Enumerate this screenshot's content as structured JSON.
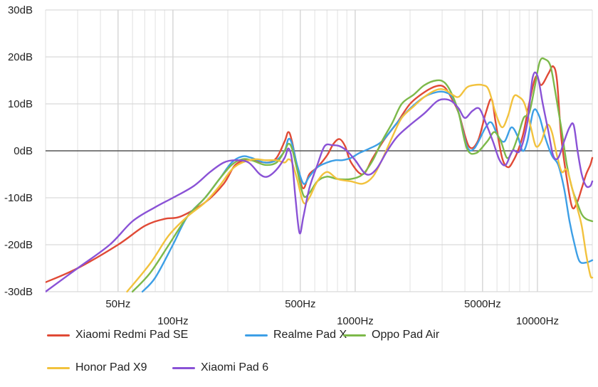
{
  "chart_data": {
    "type": "line",
    "title": "",
    "xlabel": "",
    "ylabel": "",
    "x_scale": "log",
    "xlim": [
      20,
      20000
    ],
    "ylim": [
      -30,
      30
    ],
    "grid": true,
    "legend_position": "bottom",
    "yticks": [
      {
        "value": 30,
        "label": "30dB"
      },
      {
        "value": 20,
        "label": "20dB"
      },
      {
        "value": 10,
        "label": "10dB"
      },
      {
        "value": 0,
        "label": "0dB"
      },
      {
        "value": -10,
        "label": "-10dB"
      },
      {
        "value": -20,
        "label": "-20dB"
      },
      {
        "value": -30,
        "label": "-30dB"
      }
    ],
    "xticks": [
      {
        "value": 50,
        "label": "50Hz",
        "row": 0
      },
      {
        "value": 100,
        "label": "100Hz",
        "row": 1
      },
      {
        "value": 500,
        "label": "500Hz",
        "row": 0
      },
      {
        "value": 1000,
        "label": "1000Hz",
        "row": 1
      },
      {
        "value": 5000,
        "label": "5000Hz",
        "row": 0
      },
      {
        "value": 10000,
        "label": "10000Hz",
        "row": 1
      }
    ],
    "series": [
      {
        "name": "Xiaomi Redmi Pad SE",
        "color": "#e04a36",
        "points": [
          [
            20,
            -28
          ],
          [
            30,
            -25
          ],
          [
            50,
            -20
          ],
          [
            70,
            -16
          ],
          [
            90,
            -14.5
          ],
          [
            110,
            -14
          ],
          [
            150,
            -11
          ],
          [
            190,
            -7
          ],
          [
            220,
            -3
          ],
          [
            260,
            -2
          ],
          [
            330,
            -2.5
          ],
          [
            370,
            -1.5
          ],
          [
            410,
            2
          ],
          [
            430,
            4
          ],
          [
            450,
            2
          ],
          [
            490,
            -5
          ],
          [
            520,
            -8
          ],
          [
            560,
            -5
          ],
          [
            620,
            -3.5
          ],
          [
            700,
            -1
          ],
          [
            760,
            1.5
          ],
          [
            820,
            2.5
          ],
          [
            880,
            1
          ],
          [
            950,
            -2.5
          ],
          [
            1100,
            -5
          ],
          [
            1250,
            -1.5
          ],
          [
            1450,
            2.5
          ],
          [
            1700,
            6
          ],
          [
            2000,
            10
          ],
          [
            2400,
            12.5
          ],
          [
            2800,
            13.8
          ],
          [
            3100,
            13.5
          ],
          [
            3400,
            11
          ],
          [
            3700,
            8
          ],
          [
            4200,
            1
          ],
          [
            4700,
            2
          ],
          [
            5200,
            8
          ],
          [
            5600,
            11
          ],
          [
            5900,
            6
          ],
          [
            6400,
            -1.5
          ],
          [
            6900,
            -3.5
          ],
          [
            7400,
            -2
          ],
          [
            7900,
            0.5
          ],
          [
            8400,
            4
          ],
          [
            9000,
            10
          ],
          [
            9800,
            15.8
          ],
          [
            10500,
            14
          ],
          [
            11500,
            16.5
          ],
          [
            12200,
            18
          ],
          [
            12800,
            15
          ],
          [
            13500,
            3
          ],
          [
            14500,
            -6
          ],
          [
            15500,
            -12
          ],
          [
            16500,
            -11
          ],
          [
            17500,
            -8
          ],
          [
            18500,
            -5
          ],
          [
            19500,
            -3
          ],
          [
            20000,
            -1.5
          ]
        ]
      },
      {
        "name": "Realme Pad X",
        "color": "#3d9fe6",
        "points": [
          [
            68,
            -30
          ],
          [
            80,
            -27
          ],
          [
            100,
            -20
          ],
          [
            120,
            -14
          ],
          [
            150,
            -10
          ],
          [
            180,
            -6
          ],
          [
            210,
            -2.5
          ],
          [
            240,
            -1.2
          ],
          [
            270,
            -1.5
          ],
          [
            320,
            -2.5
          ],
          [
            370,
            -2
          ],
          [
            410,
            0
          ],
          [
            430,
            2.5
          ],
          [
            450,
            1.5
          ],
          [
            480,
            -3
          ],
          [
            520,
            -7
          ],
          [
            560,
            -5.5
          ],
          [
            620,
            -3.5
          ],
          [
            700,
            -2.5
          ],
          [
            780,
            -2
          ],
          [
            850,
            -2
          ],
          [
            950,
            -1.5
          ],
          [
            1050,
            -0.5
          ],
          [
            1200,
            0.5
          ],
          [
            1400,
            2
          ],
          [
            1700,
            6
          ],
          [
            2000,
            9
          ],
          [
            2400,
            11.5
          ],
          [
            2800,
            12.5
          ],
          [
            3100,
            12.5
          ],
          [
            3400,
            11.5
          ],
          [
            3700,
            8
          ],
          [
            4100,
            1
          ],
          [
            4500,
            0.5
          ],
          [
            5200,
            5
          ],
          [
            5600,
            6
          ],
          [
            6100,
            3
          ],
          [
            6600,
            2
          ],
          [
            7200,
            5
          ],
          [
            7800,
            3
          ],
          [
            8300,
            0
          ],
          [
            8800,
            2
          ],
          [
            9500,
            8.5
          ],
          [
            10200,
            7.5
          ],
          [
            11000,
            3
          ],
          [
            12000,
            -1
          ],
          [
            13000,
            -3
          ],
          [
            14000,
            -8
          ],
          [
            15000,
            -15
          ],
          [
            16000,
            -20
          ],
          [
            17000,
            -23.5
          ],
          [
            18500,
            -23.8
          ],
          [
            20000,
            -23.3
          ]
        ]
      },
      {
        "name": "Oppo Pad Air",
        "color": "#7db94a",
        "points": [
          [
            60,
            -30
          ],
          [
            75,
            -26
          ],
          [
            95,
            -20
          ],
          [
            120,
            -14
          ],
          [
            150,
            -10
          ],
          [
            180,
            -6
          ],
          [
            210,
            -3
          ],
          [
            240,
            -1.8
          ],
          [
            270,
            -2
          ],
          [
            320,
            -3
          ],
          [
            370,
            -2.5
          ],
          [
            410,
            0
          ],
          [
            430,
            1.5
          ],
          [
            450,
            0.5
          ],
          [
            480,
            -4
          ],
          [
            520,
            -9.5
          ],
          [
            560,
            -9
          ],
          [
            620,
            -6.5
          ],
          [
            700,
            -5.5
          ],
          [
            800,
            -6
          ],
          [
            950,
            -6
          ],
          [
            1100,
            -5
          ],
          [
            1250,
            -2
          ],
          [
            1400,
            2
          ],
          [
            1600,
            6
          ],
          [
            1800,
            10
          ],
          [
            2100,
            12
          ],
          [
            2400,
            14
          ],
          [
            2800,
            15
          ],
          [
            3100,
            14.5
          ],
          [
            3400,
            12
          ],
          [
            3700,
            8
          ],
          [
            4100,
            0.5
          ],
          [
            4600,
            -0.5
          ],
          [
            5300,
            2
          ],
          [
            5800,
            4
          ],
          [
            6300,
            2
          ],
          [
            6800,
            -1.5
          ],
          [
            7300,
            0
          ],
          [
            7800,
            3
          ],
          [
            8400,
            7
          ],
          [
            9000,
            8
          ],
          [
            9600,
            13
          ],
          [
            10300,
            19
          ],
          [
            11000,
            19.5
          ],
          [
            11800,
            18
          ],
          [
            12600,
            12
          ],
          [
            13500,
            5
          ],
          [
            14500,
            -3
          ],
          [
            15500,
            -8
          ],
          [
            16500,
            -11
          ],
          [
            17500,
            -13.5
          ],
          [
            18500,
            -14.5
          ],
          [
            20000,
            -15
          ]
        ]
      },
      {
        "name": "Honor Pad X9",
        "color": "#f2c23d",
        "points": [
          [
            56,
            -30
          ],
          [
            75,
            -24
          ],
          [
            95,
            -18
          ],
          [
            120,
            -14
          ],
          [
            150,
            -11
          ],
          [
            180,
            -7.5
          ],
          [
            210,
            -4
          ],
          [
            240,
            -2.5
          ],
          [
            280,
            -1.8
          ],
          [
            320,
            -2
          ],
          [
            370,
            -2
          ],
          [
            410,
            -2.5
          ],
          [
            430,
            -1.8
          ],
          [
            450,
            -2.5
          ],
          [
            480,
            -6
          ],
          [
            520,
            -11
          ],
          [
            560,
            -10
          ],
          [
            620,
            -6.5
          ],
          [
            700,
            -4.5
          ],
          [
            800,
            -6
          ],
          [
            950,
            -6.5
          ],
          [
            1100,
            -7
          ],
          [
            1250,
            -5.5
          ],
          [
            1400,
            -2
          ],
          [
            1600,
            3
          ],
          [
            1800,
            7
          ],
          [
            2100,
            9.5
          ],
          [
            2400,
            11.5
          ],
          [
            2800,
            13
          ],
          [
            3100,
            13
          ],
          [
            3400,
            12
          ],
          [
            3700,
            11.5
          ],
          [
            4100,
            13.5
          ],
          [
            4500,
            14
          ],
          [
            5000,
            14
          ],
          [
            5400,
            13
          ],
          [
            5900,
            8
          ],
          [
            6400,
            5
          ],
          [
            6900,
            7.5
          ],
          [
            7400,
            11.5
          ],
          [
            7900,
            11.5
          ],
          [
            8500,
            10
          ],
          [
            9200,
            5
          ],
          [
            9800,
            1
          ],
          [
            10500,
            2
          ],
          [
            11300,
            5.5
          ],
          [
            12000,
            4
          ],
          [
            12800,
            -1
          ],
          [
            13600,
            -4.5
          ],
          [
            14500,
            -4
          ],
          [
            15500,
            -8
          ],
          [
            16500,
            -12
          ],
          [
            17500,
            -16
          ],
          [
            18500,
            -22
          ],
          [
            19500,
            -26.5
          ],
          [
            20000,
            -27
          ]
        ]
      },
      {
        "name": "Xiaomi Pad 6",
        "color": "#8a52d6",
        "points": [
          [
            20,
            -30
          ],
          [
            30,
            -25
          ],
          [
            45,
            -20
          ],
          [
            60,
            -15
          ],
          [
            80,
            -12
          ],
          [
            100,
            -10
          ],
          [
            130,
            -7.5
          ],
          [
            160,
            -4.5
          ],
          [
            190,
            -2.5
          ],
          [
            220,
            -2
          ],
          [
            260,
            -2.5
          ],
          [
            300,
            -5
          ],
          [
            330,
            -5.5
          ],
          [
            370,
            -4
          ],
          [
            410,
            -1.5
          ],
          [
            430,
            0.5
          ],
          [
            450,
            -2
          ],
          [
            470,
            -10
          ],
          [
            495,
            -17.5
          ],
          [
            520,
            -14
          ],
          [
            560,
            -8
          ],
          [
            620,
            -3
          ],
          [
            680,
            1
          ],
          [
            750,
            1.2
          ],
          [
            820,
            1
          ],
          [
            900,
            0
          ],
          [
            1000,
            -2
          ],
          [
            1150,
            -5
          ],
          [
            1300,
            -4
          ],
          [
            1500,
            0
          ],
          [
            1700,
            3
          ],
          [
            2000,
            5.5
          ],
          [
            2400,
            8
          ],
          [
            2800,
            10.5
          ],
          [
            3100,
            11
          ],
          [
            3400,
            10.5
          ],
          [
            3700,
            9
          ],
          [
            4000,
            7
          ],
          [
            4400,
            8.5
          ],
          [
            4800,
            9
          ],
          [
            5200,
            6
          ],
          [
            5700,
            2
          ],
          [
            6200,
            -2
          ],
          [
            6700,
            -3
          ],
          [
            7300,
            0
          ],
          [
            8000,
            0
          ],
          [
            8800,
            6
          ],
          [
            9400,
            15.5
          ],
          [
            10000,
            16
          ],
          [
            10700,
            10
          ],
          [
            11500,
            4
          ],
          [
            12200,
            -1
          ],
          [
            13000,
            -1.5
          ],
          [
            14000,
            2
          ],
          [
            15000,
            5
          ],
          [
            15800,
            5.5
          ],
          [
            16600,
            0
          ],
          [
            17500,
            -5
          ],
          [
            18500,
            -7.5
          ],
          [
            19500,
            -7.5
          ],
          [
            20000,
            -6.5
          ]
        ]
      }
    ]
  }
}
